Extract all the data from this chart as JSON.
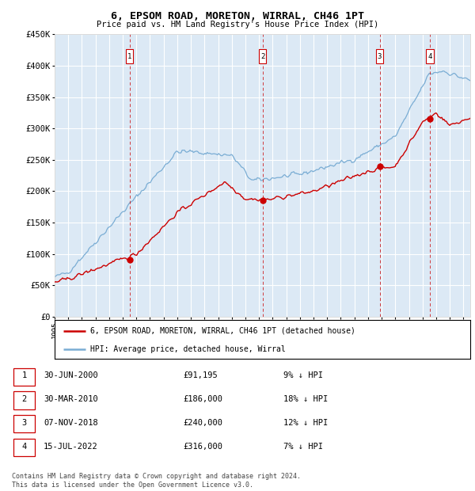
{
  "title": "6, EPSOM ROAD, MORETON, WIRRAL, CH46 1PT",
  "subtitle": "Price paid vs. HM Land Registry's House Price Index (HPI)",
  "ylim": [
    0,
    450000
  ],
  "yticks": [
    0,
    50000,
    100000,
    150000,
    200000,
    250000,
    300000,
    350000,
    400000,
    450000
  ],
  "ytick_labels": [
    "£0",
    "£50K",
    "£100K",
    "£150K",
    "£200K",
    "£250K",
    "£300K",
    "£350K",
    "£400K",
    "£450K"
  ],
  "bg_color": "#dce9f5",
  "grid_color": "#ffffff",
  "hpi_color": "#7aadd4",
  "price_color": "#cc0000",
  "sale_points": [
    {
      "num": 1,
      "year": 2000.5,
      "price": 91195,
      "label": "30-JUN-2000",
      "price_str": "£91,195",
      "hpi_str": "9% ↓ HPI"
    },
    {
      "num": 2,
      "year": 2010.25,
      "price": 186000,
      "label": "30-MAR-2010",
      "price_str": "£186,000",
      "hpi_str": "18% ↓ HPI"
    },
    {
      "num": 3,
      "year": 2018.85,
      "price": 240000,
      "label": "07-NOV-2018",
      "price_str": "£240,000",
      "hpi_str": "12% ↓ HPI"
    },
    {
      "num": 4,
      "year": 2022.54,
      "price": 316000,
      "label": "15-JUL-2022",
      "price_str": "£316,000",
      "hpi_str": "7% ↓ HPI"
    }
  ],
  "legend_red_label": "6, EPSOM ROAD, MORETON, WIRRAL, CH46 1PT (detached house)",
  "legend_blue_label": "HPI: Average price, detached house, Wirral",
  "footer": "Contains HM Land Registry data © Crown copyright and database right 2024.\nThis data is licensed under the Open Government Licence v3.0.",
  "xmin": 1995,
  "xmax": 2025.5
}
